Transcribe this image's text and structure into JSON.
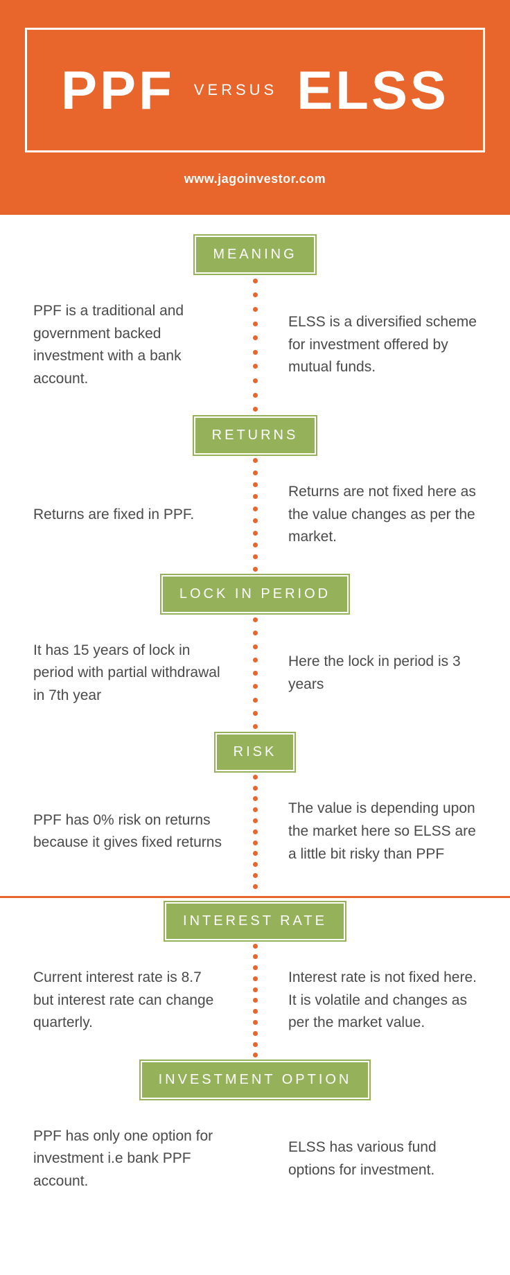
{
  "colors": {
    "orange": "#e8652c",
    "green": "#95b25b",
    "text": "#4a4a4a",
    "white": "#ffffff"
  },
  "header": {
    "left_title": "PPF",
    "middle_word": "VERSUS",
    "right_title": "ELSS",
    "website": "www.jagoinvestor.com",
    "title_big_fontsize": 78,
    "title_small_fontsize": 22
  },
  "sections": [
    {
      "label": "MEANING",
      "left": "PPF is a traditional and government backed investment with a bank account.",
      "right": "ELSS is a diversified scheme for investment offered by mutual funds.",
      "dot_count": 10
    },
    {
      "label": "RETURNS",
      "left": "Returns are fixed in PPF.",
      "right": "Returns are not fixed here as the value changes as per the market.",
      "dot_count": 10
    },
    {
      "label": "LOCK IN PERIOD",
      "left": "It has 15 years of lock in period with partial withdrawal in 7th year",
      "right": "Here the lock in period is 3 years",
      "dot_count": 9
    },
    {
      "label": "RISK",
      "left": "PPF has 0% risk on returns because it gives fixed returns",
      "right": "The value is depending upon the market here so ELSS are a little bit risky than PPF",
      "dot_count": 11,
      "hr_after": true
    },
    {
      "label": "INTEREST RATE",
      "left": "Current interest rate is 8.7 but interest rate can change quarterly.",
      "right": "Interest rate is not fixed here. It is volatile and changes as per the market value.",
      "dot_count": 11
    },
    {
      "label": "INVESTMENT OPTION",
      "left": "PPF has only one option for investment i.e bank PPF account.",
      "right": "ELSS has various fund options for investment.",
      "dot_count": 0
    }
  ]
}
